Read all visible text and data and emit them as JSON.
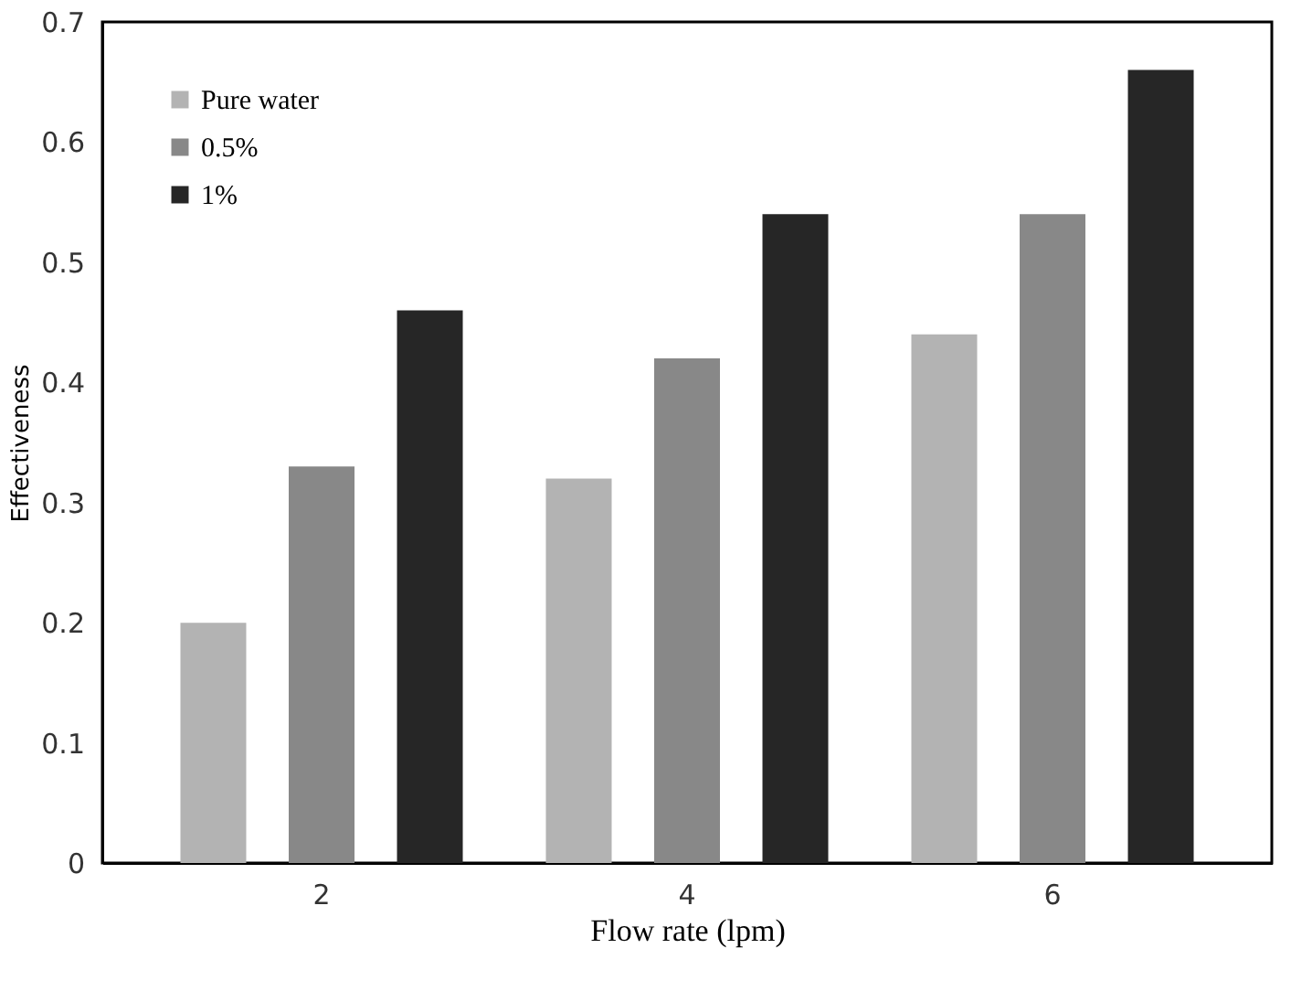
{
  "chart_data": {
    "type": "bar",
    "categories": [
      "2",
      "4",
      "6"
    ],
    "series": [
      {
        "name": "Pure water",
        "color": "#b3b3b3",
        "values": [
          0.2,
          0.32,
          0.44
        ]
      },
      {
        "name": "0.5%",
        "color": "#888888",
        "values": [
          0.33,
          0.42,
          0.54
        ]
      },
      {
        "name": "1%",
        "color": "#262626",
        "values": [
          0.46,
          0.54,
          0.66
        ]
      }
    ],
    "xlabel": "Flow rate (lpm)",
    "ylabel": "Effectiveness",
    "ylim": [
      0,
      0.7
    ],
    "yticks": [
      0,
      0.1,
      0.2,
      0.3,
      0.4,
      0.5,
      0.6,
      0.7
    ],
    "grid": false,
    "legend": "top left"
  }
}
